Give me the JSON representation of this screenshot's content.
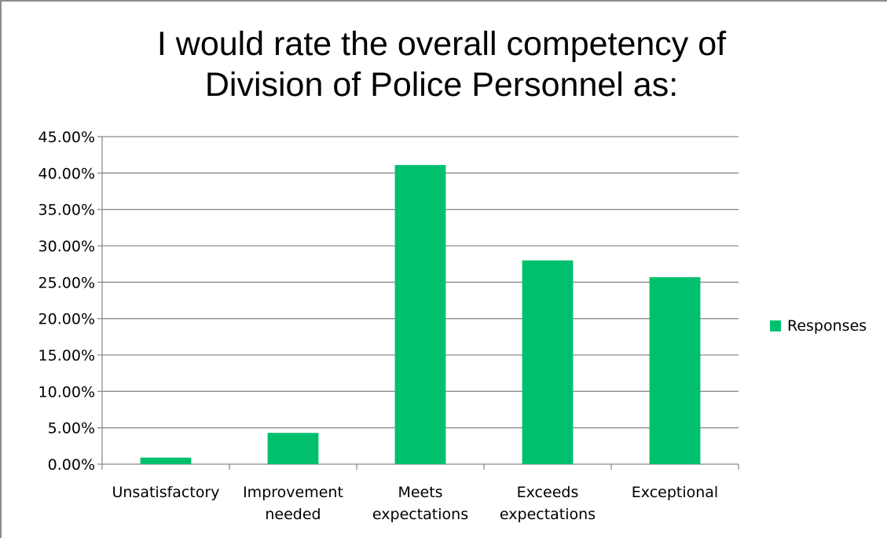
{
  "chart_data": {
    "type": "bar",
    "title": "I would rate the overall competency of Division of Police Personnel as:",
    "title_lines": [
      "I would rate the overall competency of",
      "Division of Police Personnel as:"
    ],
    "categories": [
      "Unsatisfactory",
      "Improvement needed",
      "Meets expectations",
      "Exceeds expectations",
      "Exceptional"
    ],
    "category_lines": [
      [
        "Unsatisfactory"
      ],
      [
        "Improvement",
        "needed"
      ],
      [
        "Meets",
        "expectations"
      ],
      [
        "Exceeds",
        "expectations"
      ],
      [
        "Exceptional"
      ]
    ],
    "series": [
      {
        "name": "Responses",
        "values": [
          0.9,
          4.3,
          41.1,
          28.0,
          25.7
        ]
      }
    ],
    "xlabel": "",
    "ylabel": "",
    "ylim": [
      0,
      45
    ],
    "yticks": [
      0,
      5,
      10,
      15,
      20,
      25,
      30,
      35,
      40,
      45
    ],
    "ytick_labels": [
      "0.00%",
      "5.00%",
      "10.00%",
      "15.00%",
      "20.00%",
      "25.00%",
      "30.00%",
      "35.00%",
      "40.00%",
      "45.00%"
    ],
    "grid": true,
    "legend_position": "right",
    "bar_color": "#00c06e",
    "grid_color": "#8c8c8c"
  }
}
